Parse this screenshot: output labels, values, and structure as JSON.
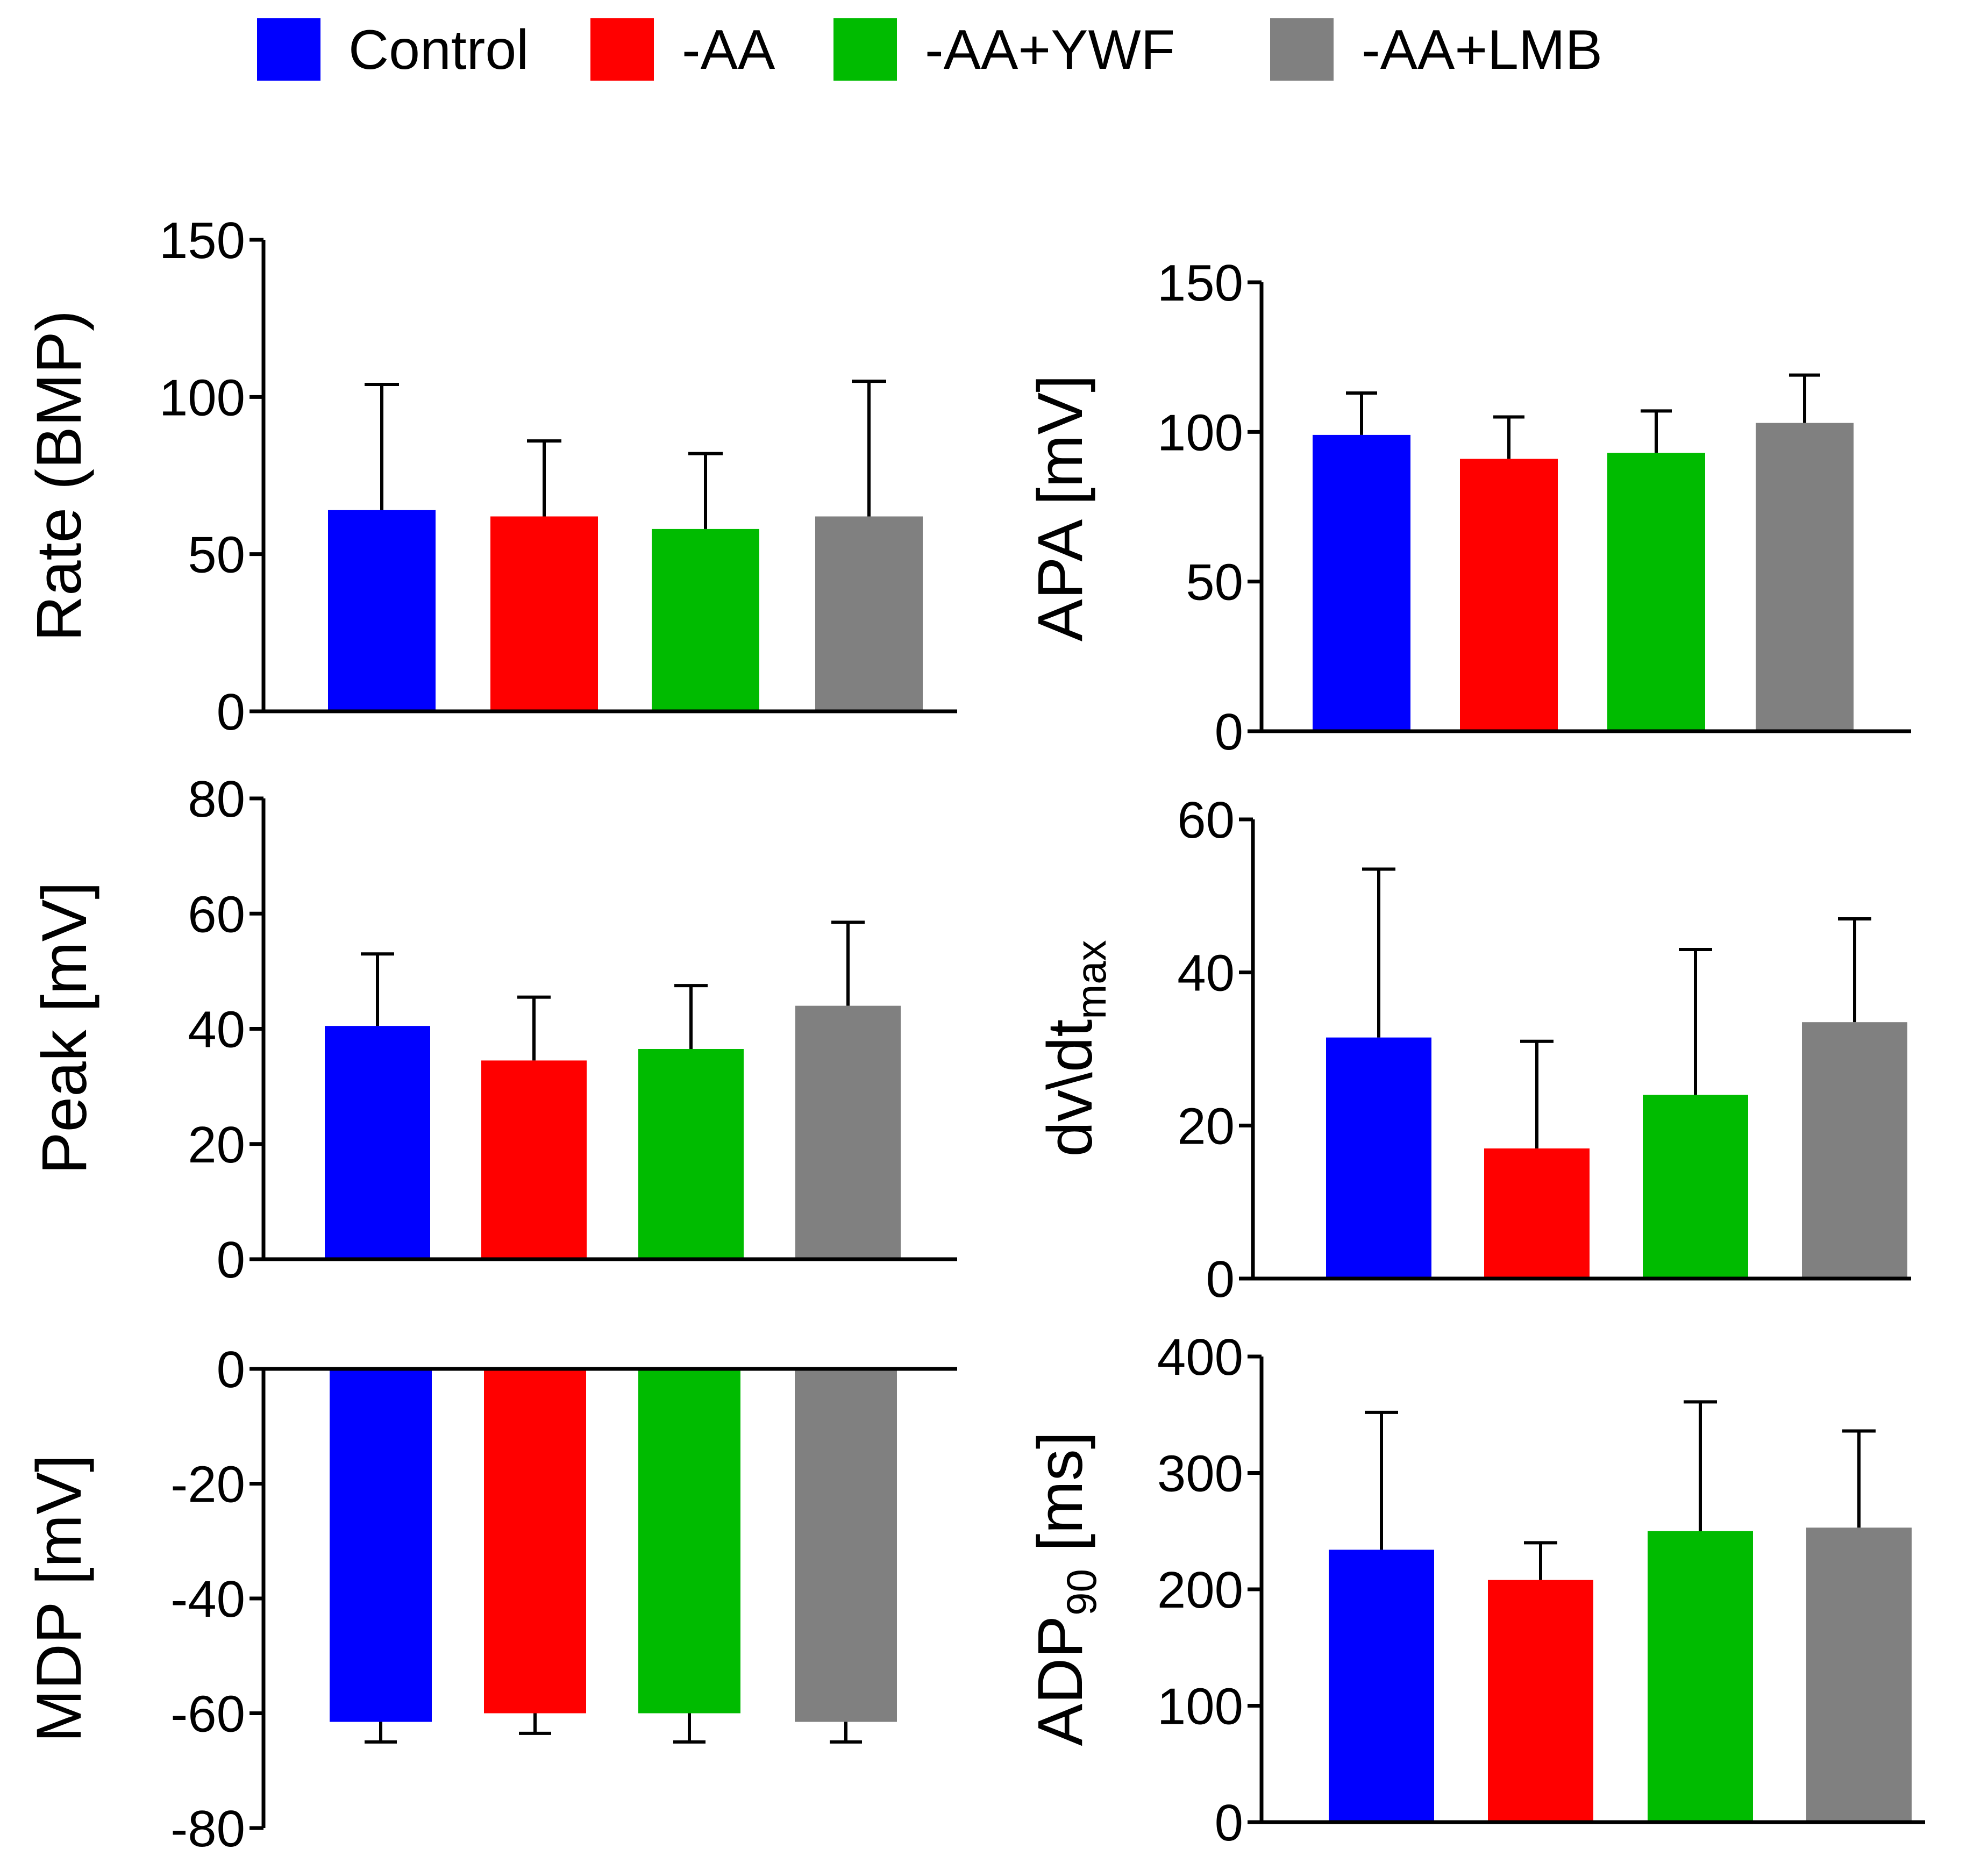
{
  "legend": [
    {
      "label": "Control",
      "color": "#0000FF"
    },
    {
      "label": "-AA",
      "color": "#FF0000"
    },
    {
      "label": "-AA+YWF",
      "color": "#00BB00"
    },
    {
      "label": "-AA+LMB",
      "color": "#808080"
    }
  ],
  "chart_data": [
    {
      "type": "bar",
      "ylabel": "Rate (BMP)",
      "ylabel_sub": "",
      "ylabel_suffix": "",
      "categories": [
        "Control",
        "-AA",
        "-AA+YWF",
        "-AA+LMB"
      ],
      "values": [
        64,
        62,
        58,
        62
      ],
      "errors": [
        40,
        24,
        24,
        43
      ],
      "ylim": [
        0,
        150
      ],
      "yticks": [
        "0",
        "50",
        "100",
        "150"
      ],
      "grid": false
    },
    {
      "type": "bar",
      "ylabel": "APA  [mV]",
      "ylabel_sub": "",
      "ylabel_suffix": "",
      "categories": [
        "Control",
        "-AA",
        "-AA+YWF",
        "-AA+LMB"
      ],
      "values": [
        99,
        91,
        93,
        103
      ],
      "errors": [
        14,
        14,
        14,
        16
      ],
      "ylim": [
        0,
        150
      ],
      "yticks": [
        "0",
        "50",
        "100",
        "150"
      ],
      "grid": false
    },
    {
      "type": "bar",
      "ylabel": "Peak [mV]",
      "ylabel_sub": "",
      "ylabel_suffix": "",
      "categories": [
        "Control",
        "-AA",
        "-AA+YWF",
        "-AA+LMB"
      ],
      "values": [
        40.5,
        34.5,
        36.5,
        44
      ],
      "errors": [
        12.5,
        11,
        11,
        14.5
      ],
      "ylim": [
        0,
        80
      ],
      "yticks": [
        "0",
        "20",
        "40",
        "60",
        "80"
      ],
      "grid": false
    },
    {
      "type": "bar",
      "ylabel": "dv\\dt",
      "ylabel_sub": "max",
      "ylabel_suffix": "",
      "categories": [
        "Control",
        "-AA",
        "-AA+YWF",
        "-AA+LMB"
      ],
      "values": [
        31.5,
        17,
        24,
        33.5
      ],
      "errors": [
        22,
        14,
        19,
        13.5
      ],
      "ylim": [
        0,
        60
      ],
      "yticks": [
        "0",
        "20",
        "40",
        "60"
      ],
      "grid": false
    },
    {
      "type": "bar",
      "ylabel": "MDP [mV]",
      "ylabel_sub": "",
      "ylabel_suffix": "",
      "categories": [
        "Control",
        "-AA",
        "-AA+YWF",
        "-AA+LMB"
      ],
      "values": [
        -61.5,
        -60,
        -60,
        -61.5
      ],
      "errors": [
        3.5,
        3.5,
        5,
        3.5
      ],
      "ylim": [
        -80,
        0
      ],
      "yticks": [
        "0",
        "-20",
        "-40",
        "-60",
        "-80"
      ],
      "grid": false
    },
    {
      "type": "bar",
      "ylabel": "ADP",
      "ylabel_sub": "90",
      "ylabel_suffix": " [ms]",
      "categories": [
        "Control",
        "-AA",
        "-AA+YWF",
        "-AA+LMB"
      ],
      "values": [
        234,
        208,
        250,
        253
      ],
      "errors": [
        118,
        32,
        111,
        83
      ],
      "ylim": [
        0,
        400
      ],
      "yticks": [
        "0",
        "100",
        "200",
        "300",
        "400"
      ],
      "grid": false
    }
  ]
}
